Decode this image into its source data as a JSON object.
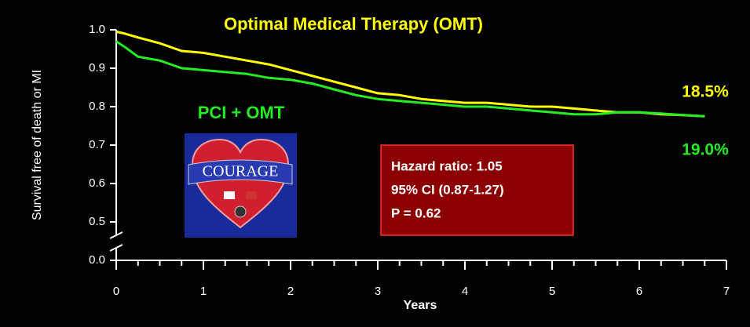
{
  "chart_data": {
    "type": "line",
    "title": "Optimal Medical Therapy (OMT)",
    "xlabel": "Years",
    "ylabel": "Survival free of death or MI",
    "x": [
      0,
      0.1,
      0.25,
      0.5,
      0.75,
      1,
      1.25,
      1.5,
      1.75,
      2,
      2.25,
      2.5,
      2.75,
      3,
      3.25,
      3.5,
      3.75,
      4,
      4.25,
      4.5,
      4.75,
      5,
      5.25,
      5.5,
      5.75,
      6,
      6.25,
      6.5,
      6.75
    ],
    "series": [
      {
        "name": "Optimal Medical Therapy (OMT)",
        "color": "#ffff00",
        "values": [
          0.995,
          0.99,
          0.98,
          0.965,
          0.945,
          0.94,
          0.93,
          0.92,
          0.91,
          0.895,
          0.88,
          0.865,
          0.85,
          0.835,
          0.83,
          0.82,
          0.815,
          0.81,
          0.81,
          0.805,
          0.8,
          0.8,
          0.795,
          0.79,
          0.785,
          0.785,
          0.78,
          0.778,
          0.775
        ]
      },
      {
        "name": "PCI + OMT",
        "color": "#22ee22",
        "values": [
          0.97,
          0.955,
          0.93,
          0.92,
          0.9,
          0.895,
          0.89,
          0.885,
          0.875,
          0.87,
          0.86,
          0.845,
          0.83,
          0.82,
          0.815,
          0.81,
          0.805,
          0.8,
          0.8,
          0.795,
          0.79,
          0.785,
          0.78,
          0.78,
          0.785,
          0.785,
          0.782,
          0.778,
          0.775
        ]
      }
    ],
    "xlim": [
      0,
      7
    ],
    "xticks": [
      0,
      1,
      2,
      3,
      4,
      5,
      6,
      7
    ],
    "x_minor_ticks": [
      0.25,
      0.5,
      0.75,
      1.25,
      1.5,
      1.75,
      2.25,
      2.5,
      2.75,
      3.25,
      3.5,
      3.75,
      4.25,
      4.5,
      4.75,
      5.25,
      5.5,
      5.75,
      6.25,
      6.5,
      6.75
    ],
    "ylim": [
      0,
      1
    ],
    "y_break": [
      0,
      0.5
    ],
    "yticks": [
      {
        "value": 0,
        "label": "0.0"
      },
      {
        "value": 0.5,
        "label": "0.5"
      },
      {
        "value": 0.6,
        "label": "0.6"
      },
      {
        "value": 0.7,
        "label": "0.7"
      },
      {
        "value": 0.8,
        "label": "0.8"
      },
      {
        "value": 0.9,
        "label": "0.9"
      },
      {
        "value": 1,
        "label": "1.0"
      }
    ],
    "annotations": {
      "omt_rate": "18.5%",
      "pci_rate": "19.0%",
      "pci_label": "PCI + OMT",
      "logo": "COURAGE",
      "stats": [
        "Hazard ratio: 1.05",
        "95% CI (0.87-1.27)",
        "P = 0.62"
      ]
    }
  }
}
